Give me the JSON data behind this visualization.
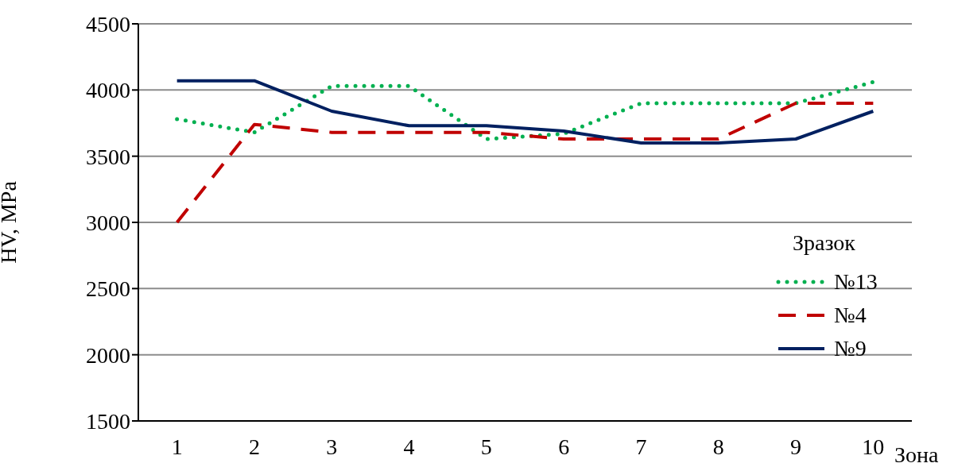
{
  "chart_data": {
    "type": "line",
    "xlabel": "Зона",
    "ylabel": "HV, MPa",
    "legend_title": "Зразок",
    "categories": [
      "1",
      "2",
      "3",
      "4",
      "5",
      "6",
      "7",
      "8",
      "9",
      "10"
    ],
    "series": [
      {
        "name": "№13",
        "color": "#00b050",
        "line_style": "dotted",
        "values": [
          3780,
          3680,
          4030,
          4030,
          3630,
          3670,
          3900,
          3900,
          3900,
          4060
        ]
      },
      {
        "name": "№4",
        "color": "#c00000",
        "line_style": "dashed",
        "values": [
          3000,
          3740,
          3680,
          3680,
          3680,
          3630,
          3630,
          3630,
          3900,
          3900
        ]
      },
      {
        "name": "№9",
        "color": "#002060",
        "line_style": "solid",
        "values": [
          4070,
          4070,
          3840,
          3730,
          3730,
          3690,
          3600,
          3600,
          3630,
          3840
        ]
      }
    ],
    "ylim": [
      1500,
      4500
    ],
    "yticks": [
      1500,
      2000,
      2500,
      3000,
      3500,
      4000,
      4500
    ],
    "grid": "y",
    "legend": "right",
    "marker": "none"
  }
}
